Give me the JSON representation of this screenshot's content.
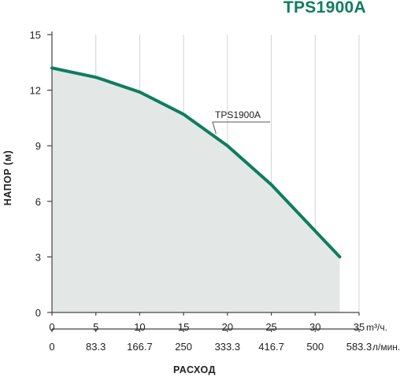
{
  "chart_data": {
    "type": "area",
    "title": "TPS1900A",
    "ylabel": "НАПОР (м)",
    "xlabel": "РАСХОД",
    "ylim": [
      0,
      15
    ],
    "y_ticks": [
      "0",
      "3",
      "6",
      "9",
      "12",
      "15"
    ],
    "x_primary": {
      "unit": "m³/ч.",
      "range": [
        0,
        35
      ],
      "ticks": [
        "0",
        "5",
        "10",
        "15",
        "20",
        "25",
        "30",
        "35"
      ]
    },
    "x_secondary": {
      "unit": "л/мин.",
      "ticks": [
        "0",
        "83.3",
        "166.7",
        "250",
        "333.3",
        "416.7",
        "500",
        "583.3"
      ]
    },
    "series": [
      {
        "name": "TPS1900A",
        "color": "#0e7d5e",
        "x": [
          0,
          5,
          10,
          15,
          20,
          25,
          30,
          32.8
        ],
        "y": [
          13.2,
          12.7,
          11.9,
          10.7,
          9.0,
          6.9,
          4.4,
          3.0
        ]
      }
    ],
    "grid": "vertical",
    "fill_color": "#e3e8e6"
  }
}
